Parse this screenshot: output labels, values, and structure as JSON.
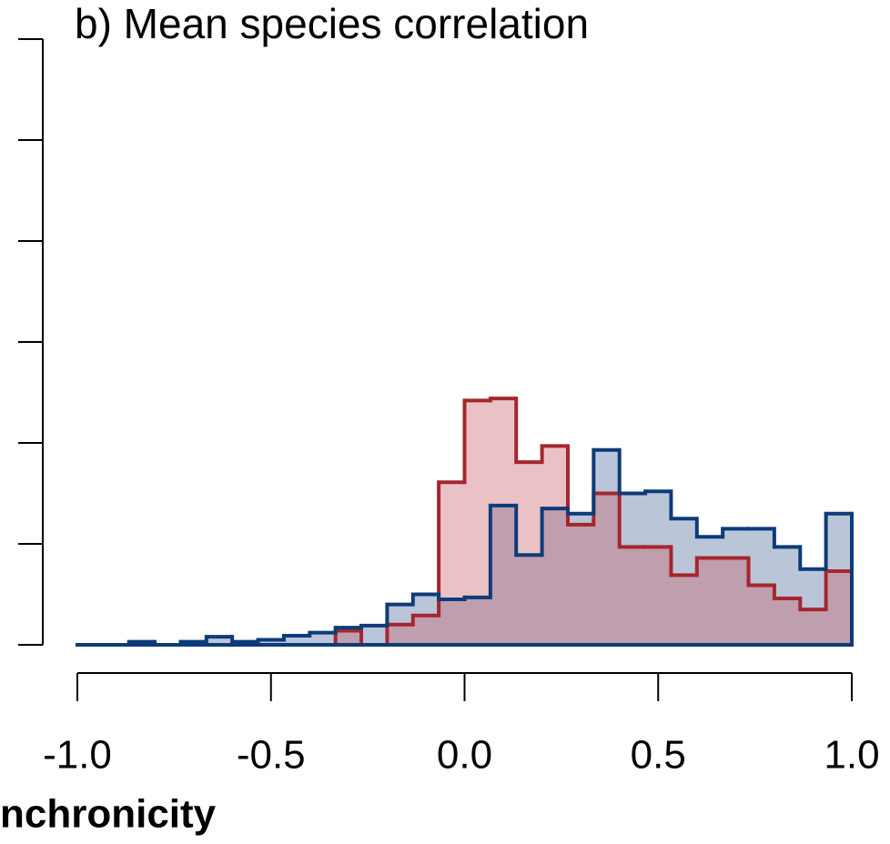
{
  "chart_data": {
    "type": "histogram",
    "title": "b) Mean species correlation",
    "xlabel": "nchronicity",
    "bins": [
      -1,
      -0.9333,
      -0.8667,
      -0.8,
      -0.7333,
      -0.6667,
      -0.6,
      -0.5333,
      -0.4667,
      -0.4,
      -0.3333,
      -0.2667,
      -0.2,
      -0.1333,
      -0.0667,
      0,
      0.0667,
      0.1333,
      0.2,
      0.2667,
      0.3333,
      0.4,
      0.4667,
      0.5333,
      0.6,
      0.6667,
      0.7333,
      0.8,
      0.8667,
      0.9333,
      1
    ],
    "series": [
      {
        "color": "#0d3b7a",
        "fill": "rgba(40,75,135,0.32)",
        "values": [
          0,
          0,
          0.03,
          0,
          0.03,
          0.08,
          0.03,
          0.05,
          0.09,
          0.12,
          0.17,
          0.19,
          0.4,
          0.5,
          0.45,
          0.47,
          1.38,
          0.89,
          1.35,
          1.3,
          1.93,
          1.5,
          1.52,
          1.25,
          1.07,
          1.15,
          1.15,
          0.97,
          0.75,
          1.3
        ]
      },
      {
        "color": "#a6262e",
        "fill": "rgba(200,95,105,0.38)",
        "values": [
          0,
          0,
          0,
          0,
          0,
          0,
          0,
          0,
          0,
          0,
          0.14,
          0,
          0.2,
          0.29,
          1.61,
          2.42,
          2.44,
          1.81,
          1.97,
          1.19,
          1.5,
          0.97,
          0.97,
          0.69,
          0.86,
          0.86,
          0.59,
          0.46,
          0.35,
          0.73
        ]
      }
    ],
    "xlim": [
      -1,
      1
    ],
    "xticks": [
      {
        "value": -1,
        "label": "-1.0"
      },
      -0.5,
      {
        "value": 0,
        "label": "0.0"
      },
      0.5,
      {
        "value": 1,
        "label": "1.0"
      }
    ],
    "ylim": [
      0,
      6
    ],
    "yticks": [
      0,
      1,
      2,
      3,
      4,
      5,
      6
    ]
  }
}
